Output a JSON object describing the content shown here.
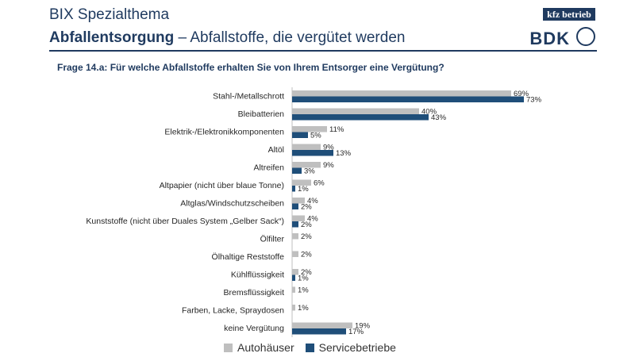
{
  "header": {
    "supertitle": "BIX Spezialthema",
    "title_bold": "Abfallentsorgung",
    "title_rest": " – Abfallstoffe, die vergütet werden",
    "logo_kfz": "kfz betrieb",
    "logo_bdk": "BDK"
  },
  "colors": {
    "autohaeuser": "#bfbfbf",
    "servicebetriebe": "#1f4e79",
    "title": "#1f3a5f"
  },
  "chart_data": {
    "type": "bar",
    "orientation": "horizontal",
    "title": "Frage 14.a: Für welche Abfallstoffe erhalten Sie von Ihrem Entsorger eine Vergütung?",
    "categories": [
      "Stahl-/Metallschrott",
      "Bleibatterien",
      "Elektrik-/Elektronikkomponenten",
      "Altöl",
      "Altreifen",
      "Altpapier (nicht über blaue Tonne)",
      "Altglas/Windschutzscheiben",
      "Kunststoffe (nicht über Duales System „Gelber Sack“)",
      "Ölfilter",
      "Ölhaltige Reststoffe",
      "Kühlflüssigkeit",
      "Bremsflüssigkeit",
      "Farben, Lacke, Spraydosen",
      "keine Vergütung"
    ],
    "series": [
      {
        "name": "Autohäuser",
        "values": [
          69,
          40,
          11,
          9,
          9,
          6,
          4,
          4,
          2,
          2,
          2,
          1,
          1,
          19
        ]
      },
      {
        "name": "Servicebetriebe",
        "values": [
          73,
          43,
          5,
          13,
          3,
          1,
          2,
          2,
          null,
          null,
          1,
          null,
          null,
          17
        ]
      }
    ],
    "value_suffix": "%",
    "xlim": [
      0,
      100
    ],
    "legend_position": "bottom"
  }
}
